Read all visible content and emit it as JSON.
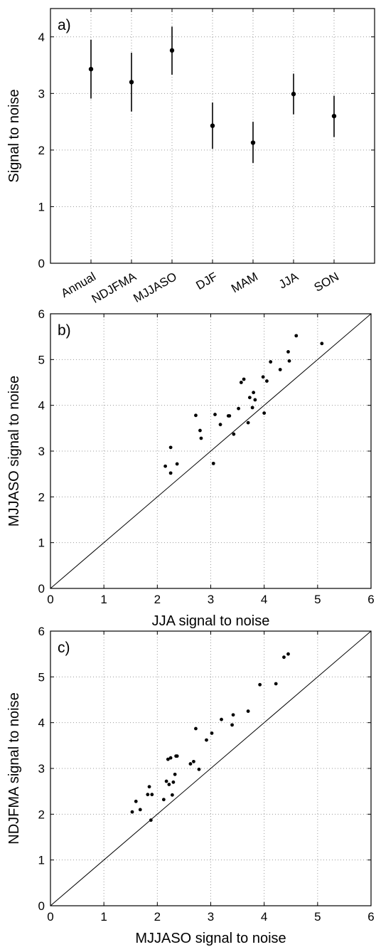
{
  "chart_data": [
    {
      "type": "errorbar",
      "panel_label": "a)",
      "ylabel": "Signal to noise",
      "ylim": [
        0,
        4.5
      ],
      "yticks": [
        0,
        1,
        2,
        3,
        4
      ],
      "grid": true,
      "categories": [
        "Annual",
        "NDJFMA",
        "MJJASO",
        "DJF",
        "MAM",
        "JJA",
        "SON"
      ],
      "values": [
        3.43,
        3.2,
        3.76,
        2.43,
        2.13,
        2.99,
        2.6
      ],
      "lower": [
        2.91,
        2.68,
        3.33,
        2.02,
        1.77,
        2.63,
        2.23
      ],
      "upper": [
        3.95,
        3.72,
        4.18,
        2.84,
        2.5,
        3.35,
        2.96
      ]
    },
    {
      "type": "scatter",
      "panel_label": "b)",
      "xlabel": "JJA signal to noise",
      "ylabel": "MJJASO signal to noise",
      "xlim": [
        0,
        6
      ],
      "ylim": [
        0,
        6
      ],
      "xticks": [
        0,
        1,
        2,
        3,
        4,
        5,
        6
      ],
      "yticks": [
        0,
        1,
        2,
        3,
        4,
        5,
        6
      ],
      "grid": true,
      "reference_line": "1:1",
      "points": [
        [
          2.15,
          2.67
        ],
        [
          2.25,
          2.52
        ],
        [
          2.25,
          3.08
        ],
        [
          2.37,
          2.72
        ],
        [
          2.72,
          3.78
        ],
        [
          2.8,
          3.45
        ],
        [
          2.82,
          3.28
        ],
        [
          3.05,
          2.73
        ],
        [
          3.08,
          3.8
        ],
        [
          3.18,
          3.58
        ],
        [
          3.33,
          3.77
        ],
        [
          3.35,
          3.77
        ],
        [
          3.43,
          3.37
        ],
        [
          3.52,
          3.93
        ],
        [
          3.57,
          4.5
        ],
        [
          3.62,
          4.57
        ],
        [
          3.7,
          3.62
        ],
        [
          3.73,
          4.17
        ],
        [
          3.78,
          3.95
        ],
        [
          3.8,
          4.28
        ],
        [
          3.83,
          4.12
        ],
        [
          3.98,
          4.62
        ],
        [
          4.0,
          3.83
        ],
        [
          4.05,
          4.53
        ],
        [
          4.12,
          4.95
        ],
        [
          4.3,
          4.78
        ],
        [
          4.45,
          5.17
        ],
        [
          4.47,
          4.97
        ],
        [
          4.6,
          5.52
        ],
        [
          5.08,
          5.35
        ]
      ]
    },
    {
      "type": "scatter",
      "panel_label": "c)",
      "xlabel": "MJJASO signal to noise",
      "ylabel": "NDJFMA signal to noise",
      "xlim": [
        0,
        6
      ],
      "ylim": [
        0,
        6
      ],
      "xticks": [
        0,
        1,
        2,
        3,
        4,
        5,
        6
      ],
      "yticks": [
        0,
        1,
        2,
        3,
        4,
        5,
        6
      ],
      "grid": true,
      "reference_line": "1:1",
      "points": [
        [
          1.53,
          2.05
        ],
        [
          1.6,
          2.28
        ],
        [
          1.68,
          2.1
        ],
        [
          1.82,
          2.43
        ],
        [
          1.85,
          2.6
        ],
        [
          1.88,
          1.87
        ],
        [
          1.9,
          2.43
        ],
        [
          2.12,
          2.32
        ],
        [
          2.17,
          2.72
        ],
        [
          2.2,
          3.2
        ],
        [
          2.22,
          2.65
        ],
        [
          2.25,
          3.23
        ],
        [
          2.28,
          2.42
        ],
        [
          2.3,
          2.7
        ],
        [
          2.33,
          2.87
        ],
        [
          2.35,
          3.27
        ],
        [
          2.37,
          3.27
        ],
        [
          2.62,
          3.1
        ],
        [
          2.68,
          3.15
        ],
        [
          2.72,
          3.87
        ],
        [
          2.78,
          2.98
        ],
        [
          2.92,
          3.62
        ],
        [
          3.02,
          3.77
        ],
        [
          3.2,
          4.07
        ],
        [
          3.4,
          3.95
        ],
        [
          3.42,
          4.17
        ],
        [
          3.7,
          4.25
        ],
        [
          3.92,
          4.83
        ],
        [
          4.22,
          4.85
        ],
        [
          4.37,
          5.43
        ],
        [
          4.45,
          5.5
        ]
      ]
    }
  ]
}
